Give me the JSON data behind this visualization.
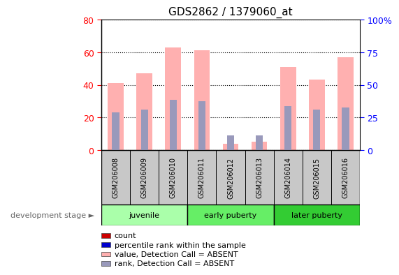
{
  "title": "GDS2862 / 1379060_at",
  "samples": [
    "GSM206008",
    "GSM206009",
    "GSM206010",
    "GSM206011",
    "GSM206012",
    "GSM206013",
    "GSM206014",
    "GSM206015",
    "GSM206016"
  ],
  "pink_bar_heights": [
    41,
    47,
    63,
    61,
    4,
    5,
    51,
    43,
    57
  ],
  "blue_bar_heights": [
    23,
    25,
    31,
    30,
    9,
    9,
    27,
    25,
    26
  ],
  "left_ylim": [
    0,
    80
  ],
  "right_ylim": [
    0,
    100
  ],
  "left_yticks": [
    0,
    20,
    40,
    60,
    80
  ],
  "right_yticks": [
    0,
    25,
    50,
    75,
    100
  ],
  "right_yticklabels": [
    "0",
    "25",
    "50",
    "75",
    "100%"
  ],
  "pink_color": "#FFB0B0",
  "blue_color": "#9999BB",
  "xlabel_area_color": "#C8C8C8",
  "group_data": [
    {
      "start": 0,
      "end": 3,
      "label": "juvenile",
      "color": "#AAFFAA"
    },
    {
      "start": 3,
      "end": 6,
      "label": "early puberty",
      "color": "#66EE66"
    },
    {
      "start": 6,
      "end": 9,
      "label": "later puberty",
      "color": "#33CC33"
    }
  ],
  "legend_items": [
    {
      "color": "#CC0000",
      "label": "count"
    },
    {
      "color": "#0000CC",
      "label": "percentile rank within the sample"
    },
    {
      "color": "#FFB0B0",
      "label": "value, Detection Call = ABSENT"
    },
    {
      "color": "#9999BB",
      "label": "rank, Detection Call = ABSENT"
    }
  ],
  "dev_stage_text": "development stage",
  "dev_stage_arrow": "►"
}
